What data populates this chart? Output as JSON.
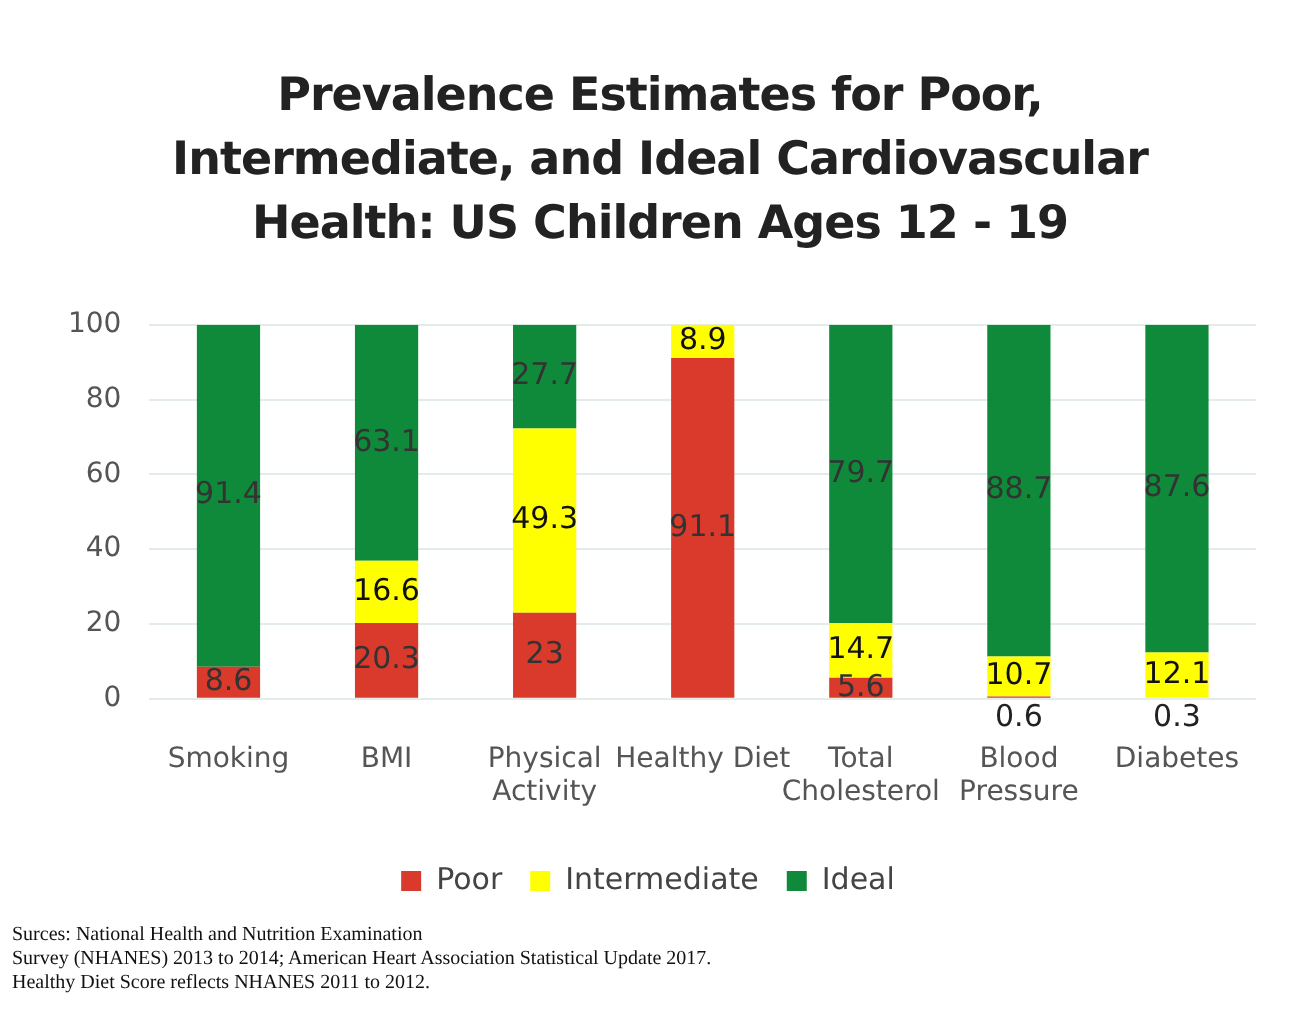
{
  "chart_data": {
    "type": "bar",
    "stacked": true,
    "title": "Prevalence Estimates for Poor, Intermediate, and Ideal Cardiovascular Health: US Children Ages 12 - 19",
    "categories": [
      "Smoking",
      "BMI",
      "Physical Activity",
      "Healthy Diet",
      "Total Cholesterol",
      "Blood Pressure",
      "Diabetes"
    ],
    "series": [
      {
        "name": "Poor",
        "color": "#d93a2b",
        "values": [
          8.6,
          20.3,
          23,
          91.1,
          5.6,
          0.6,
          0.3
        ]
      },
      {
        "name": "Intermediate",
        "color": "#ffff00",
        "values": [
          null,
          16.6,
          49.3,
          8.9,
          14.7,
          10.7,
          12.1
        ]
      },
      {
        "name": "Ideal",
        "color": "#0f8a3a",
        "values": [
          91.4,
          63.1,
          27.7,
          null,
          79.7,
          88.7,
          87.6
        ]
      }
    ],
    "ylim": [
      0,
      100
    ],
    "yticks": [
      0,
      20,
      40,
      60,
      80,
      100
    ],
    "grid": "y",
    "legend": "bottom",
    "data_labels": true,
    "annotations": [
      "Surces: National Health and Nutrition Examination",
      "Survey (NHANES) 2013 to 2014; American Heart Association Statistical Update 2017.",
      "Healthy Diet Score reflects NHANES 2011 to 2012."
    ]
  }
}
